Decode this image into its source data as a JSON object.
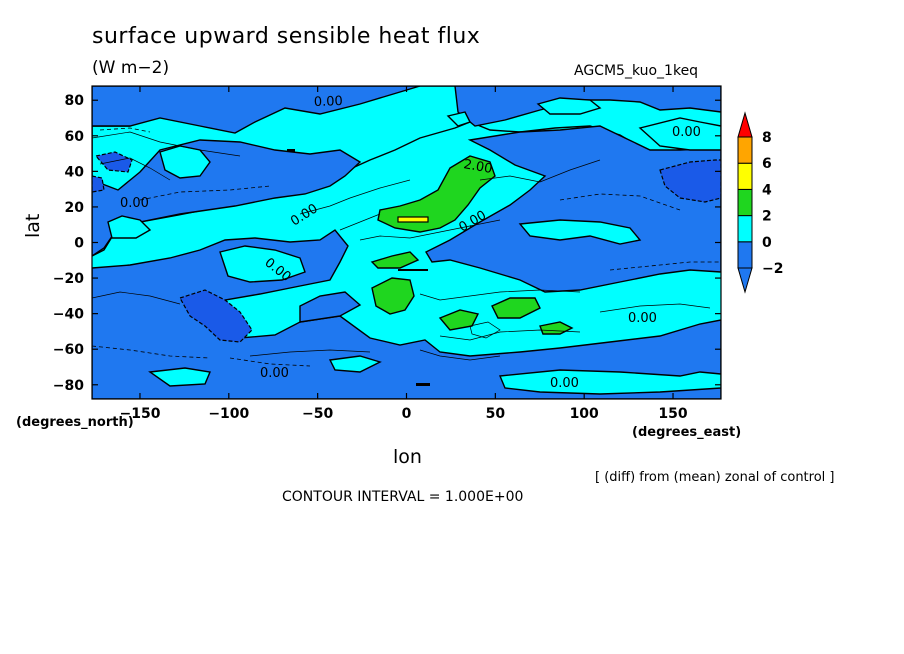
{
  "chart_data": {
    "type": "heatmap",
    "title": "surface upward sensible heat flux",
    "units": "(W m−2)",
    "run_label": "AGCM5_kuo_1keq",
    "xlabel": "lon",
    "ylabel": "lat",
    "x_units_label": "(degrees_east)",
    "y_units_label": "(degrees_north)",
    "xlim": [
      -177,
      177
    ],
    "ylim": [
      -88,
      88
    ],
    "x_ticks": [
      -150,
      -100,
      -50,
      0,
      50,
      100,
      150
    ],
    "y_ticks": [
      80,
      60,
      40,
      20,
      0,
      -20,
      -40,
      -60,
      -80
    ],
    "x_tick_labels": [
      "−150",
      "−100",
      "−50",
      "0",
      "50",
      "100",
      "150"
    ],
    "y_tick_labels": [
      "80",
      "60",
      "40",
      "20",
      "0",
      "−20",
      "−40",
      "−60",
      "−80"
    ],
    "colorbar": {
      "levels": [
        -2,
        0,
        2,
        4,
        6,
        8
      ],
      "tick_labels": [
        "−2",
        "0",
        "2",
        "4",
        "6",
        "8"
      ],
      "colors": [
        "#1f78f0",
        "#00ffff",
        "#1fd61f",
        "#ffff00",
        "#ffa500",
        "#ff0000"
      ],
      "low_color": "#1f78f0",
      "high_color": "#ff0000"
    },
    "contour_labels": [
      "0.00",
      "0.00",
      "0.00",
      "0.00",
      "0.00",
      "0.00",
      "0.00",
      "0.00",
      "2.00",
      "0.00"
    ],
    "note": "[ (diff) from (mean) zonal of control ]",
    "contour_interval": "CONTOUR INTERVAL = 1.000E+00"
  }
}
